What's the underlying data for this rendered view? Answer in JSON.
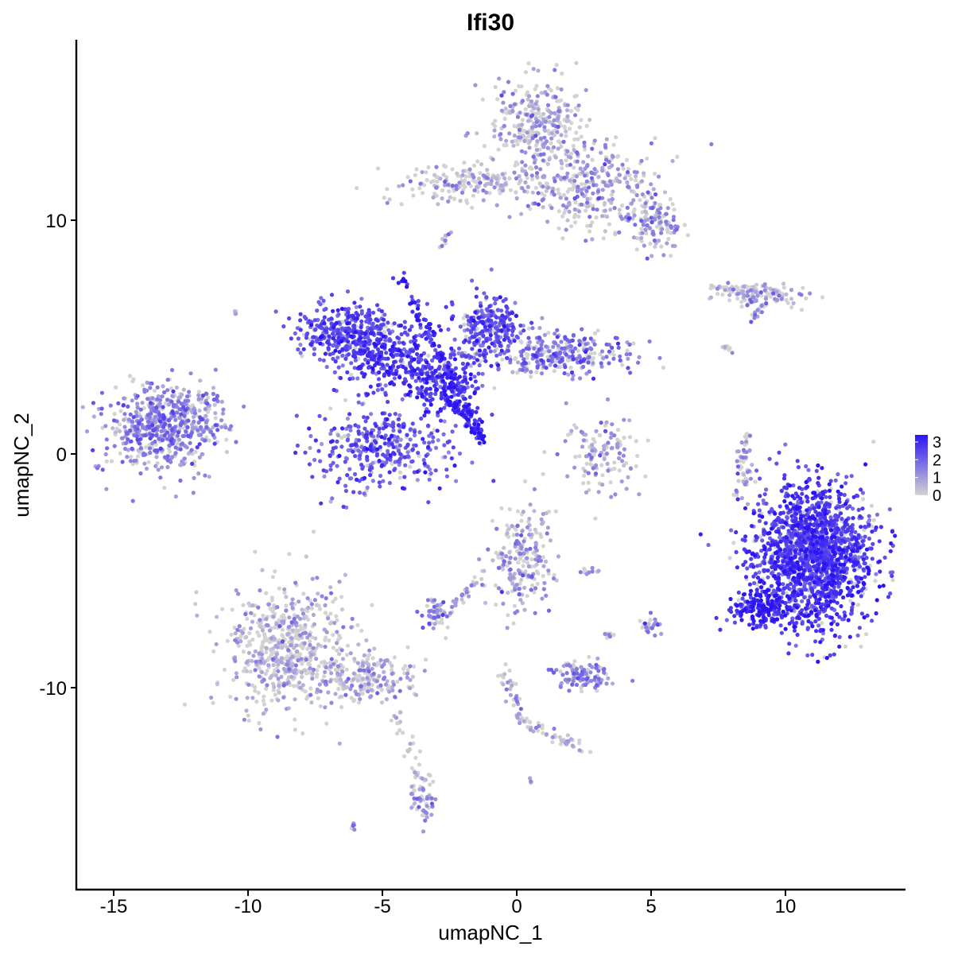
{
  "chart_data": {
    "type": "scatter",
    "title": "Ifi30",
    "xlabel": "umapNC_1",
    "ylabel": "umapNC_2",
    "xlim": [
      -16.5,
      14.3
    ],
    "ylim": [
      -18.4,
      17.6
    ],
    "x_ticks": [
      -15,
      -10,
      -5,
      0,
      5,
      10
    ],
    "x_tick_labels": [
      "-15",
      "-10",
      "-5",
      "0",
      "5",
      "10"
    ],
    "y_ticks": [
      -10,
      0,
      10
    ],
    "y_tick_labels": [
      "-10",
      "0",
      "10"
    ],
    "grid": false,
    "legend": {
      "position": "right",
      "type": "colorbar",
      "labels": [
        "3",
        "2",
        "1",
        "0"
      ],
      "values": [
        3,
        2,
        1,
        0
      ],
      "low_color": "#d3d3d3",
      "high_color": "#2b13f5"
    },
    "color_scale": {
      "low": "#d3d3d3",
      "high": "#2b13f5",
      "min": 0,
      "max": 3.4
    },
    "series": [
      {
        "name": "",
        "clusters": [
          {
            "x": -13.3,
            "y": 1.2,
            "sx": 1.0,
            "sy": 0.9,
            "n": 520,
            "mean": 1.4
          },
          {
            "x": -11.8,
            "y": 1.8,
            "sx": 0.5,
            "sy": 0.6,
            "n": 90,
            "mean": 1.3
          },
          {
            "x": -6.5,
            "y": 5.2,
            "sx": 0.9,
            "sy": 0.6,
            "n": 320,
            "mean": 2.4
          },
          {
            "x": -4.8,
            "y": 4.3,
            "sx": 1.0,
            "sy": 0.8,
            "n": 300,
            "mean": 2.6
          },
          {
            "x": -2.8,
            "y": 3.2,
            "sx": 0.8,
            "sy": 0.6,
            "n": 220,
            "mean": 2.7
          },
          {
            "x": -5.0,
            "y": 0.3,
            "sx": 1.3,
            "sy": 0.9,
            "n": 380,
            "mean": 2.2
          },
          {
            "x": -1.0,
            "y": 5.5,
            "sx": 0.6,
            "sy": 0.7,
            "n": 240,
            "mean": 2.3
          },
          {
            "x": 1.5,
            "y": 4.3,
            "sx": 1.4,
            "sy": 0.5,
            "n": 300,
            "mean": 1.6
          },
          {
            "x": 0.8,
            "y": 14.2,
            "sx": 0.9,
            "sy": 0.9,
            "n": 300,
            "mean": 0.9
          },
          {
            "x": 2.9,
            "y": 11.4,
            "sx": 1.2,
            "sy": 0.9,
            "n": 320,
            "mean": 1.0
          },
          {
            "x": 5.2,
            "y": 9.8,
            "sx": 0.5,
            "sy": 0.6,
            "n": 120,
            "mean": 1.1
          },
          {
            "x": -1.5,
            "y": 11.6,
            "sx": 1.6,
            "sy": 0.45,
            "n": 200,
            "mean": 0.7
          },
          {
            "x": 9.1,
            "y": 6.8,
            "sx": 0.9,
            "sy": 0.25,
            "n": 80,
            "mean": 0.9
          },
          {
            "x": 3.3,
            "y": 0.0,
            "sx": 0.7,
            "sy": 0.9,
            "n": 130,
            "mean": 1.0
          },
          {
            "x": 8.5,
            "y": -0.6,
            "sx": 0.15,
            "sy": 0.6,
            "n": 30,
            "mean": 1.0
          },
          {
            "x": 11.0,
            "y": -4.4,
            "sx": 1.1,
            "sy": 1.5,
            "n": 1600,
            "mean": 2.6
          },
          {
            "x": 9.0,
            "y": -6.6,
            "sx": 0.5,
            "sy": 0.4,
            "n": 160,
            "mean": 3.1
          },
          {
            "x": 0.2,
            "y": -4.4,
            "sx": 0.6,
            "sy": 1.1,
            "n": 220,
            "mean": 1.0
          },
          {
            "x": -3.0,
            "y": -6.9,
            "sx": 0.25,
            "sy": 0.35,
            "n": 60,
            "mean": 1.2
          },
          {
            "x": 2.4,
            "y": -9.5,
            "sx": 0.5,
            "sy": 0.3,
            "n": 110,
            "mean": 1.4
          },
          {
            "x": -8.5,
            "y": -8.3,
            "sx": 1.2,
            "sy": 1.3,
            "n": 600,
            "mean": 0.7
          },
          {
            "x": -5.5,
            "y": -9.6,
            "sx": 0.9,
            "sy": 0.5,
            "n": 180,
            "mean": 0.9
          },
          {
            "x": -3.5,
            "y": -14.7,
            "sx": 0.25,
            "sy": 0.6,
            "n": 50,
            "mean": 1.3
          },
          {
            "x": 5.0,
            "y": -7.4,
            "sx": 0.2,
            "sy": 0.2,
            "n": 25,
            "mean": 1.4
          }
        ],
        "paths": [
          {
            "from": [
              -4.3,
              7.6
            ],
            "to": [
              -1.3,
              0.7
            ],
            "n": 120,
            "mean": 2.8,
            "spread": 0.12
          },
          {
            "from": [
              -2.6,
              2.4
            ],
            "to": [
              -1.2,
              0.6
            ],
            "n": 60,
            "mean": 3.0,
            "spread": 0.1
          },
          {
            "from": [
              -0.5,
              -9.3
            ],
            "to": [
              0.3,
              -11.5
            ],
            "n": 40,
            "mean": 0.8,
            "spread": 0.15
          },
          {
            "from": [
              0.3,
              -11.6
            ],
            "to": [
              2.5,
              -12.6
            ],
            "n": 40,
            "mean": 0.8,
            "spread": 0.15
          },
          {
            "from": [
              -4.5,
              -11.0
            ],
            "to": [
              -3.5,
              -14.2
            ],
            "n": 35,
            "mean": 0.5,
            "spread": 0.15
          },
          {
            "from": [
              -1.3,
              -5.2
            ],
            "to": [
              -2.5,
              -6.7
            ],
            "n": 30,
            "mean": 0.9,
            "spread": 0.1
          },
          {
            "from": [
              8.6,
              0.9
            ],
            "to": [
              8.2,
              -1.8
            ],
            "n": 25,
            "mean": 0.9,
            "spread": 0.08
          },
          {
            "from": [
              7.1,
              7.1
            ],
            "to": [
              9.9,
              6.9
            ],
            "n": 50,
            "mean": 0.8,
            "spread": 0.12
          },
          {
            "from": [
              8.8,
              5.8
            ],
            "to": [
              9.3,
              6.5
            ],
            "n": 15,
            "mean": 1.2,
            "spread": 0.08
          },
          {
            "from": [
              -2.5,
              9.4
            ],
            "to": [
              -2.8,
              8.8
            ],
            "n": 12,
            "mean": 0.9,
            "spread": 0.08
          },
          {
            "from": [
              7.7,
              4.7
            ],
            "to": [
              7.9,
              4.4
            ],
            "n": 8,
            "mean": 0.3,
            "spread": 0.08
          },
          {
            "from": [
              2.3,
              -5.1
            ],
            "to": [
              3.2,
              -5.0
            ],
            "n": 10,
            "mean": 1.0,
            "spread": 0.08
          },
          {
            "from": [
              3.5,
              -7.6
            ],
            "to": [
              3.3,
              -7.9
            ],
            "n": 8,
            "mean": 1.3,
            "spread": 0.06
          },
          {
            "from": [
              -6.1,
              -16.0
            ],
            "to": [
              -6.0,
              -15.9
            ],
            "n": 5,
            "mean": 1.3,
            "spread": 0.05
          },
          {
            "from": [
              0.5,
              -14.0
            ],
            "to": [
              0.6,
              -14.1
            ],
            "n": 4,
            "mean": 0.8,
            "spread": 0.05
          },
          {
            "from": [
              -10.5,
              6.1
            ],
            "to": [
              -10.4,
              6.0
            ],
            "n": 4,
            "mean": 0.8,
            "spread": 0.05
          }
        ]
      }
    ]
  }
}
